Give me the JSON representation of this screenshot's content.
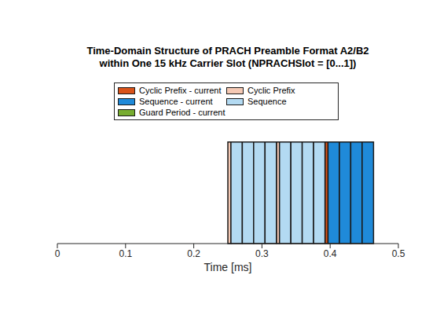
{
  "chart_data": {
    "type": "timeline",
    "title": "Time-Domain Structure of PRACH Preamble Format A2/B2\nwithin One 15 kHz Carrier Slot (NPRACHSlot = [0...1])",
    "x_label": "Time  [ms]",
    "xlim": [
      0,
      0.5
    ],
    "xticks": [
      0,
      0.1,
      0.2,
      0.3,
      0.4,
      0.5
    ],
    "tick_labels": "x",
    "legend": "top",
    "series": [
      {
        "name": "Cyclic Prefix - current",
        "color": "#D95319",
        "segments": [
          [
            0.3924,
            0.3969
          ]
        ]
      },
      {
        "name": "Cyclic Prefix",
        "color": "#F5C9B4",
        "segments": [
          [
            0.25,
            0.2545
          ],
          [
            0.3212,
            0.3257
          ]
        ]
      },
      {
        "name": "Sequence - current",
        "color": "#1F8AD9",
        "segments": [
          [
            0.3969,
            0.4136
          ],
          [
            0.4136,
            0.4302
          ],
          [
            0.4302,
            0.4469
          ],
          [
            0.4469,
            0.4636
          ]
        ]
      },
      {
        "name": "Sequence",
        "color": "#B3DAF2",
        "segments": [
          [
            0.2545,
            0.2712
          ],
          [
            0.2712,
            0.2878
          ],
          [
            0.2878,
            0.3045
          ],
          [
            0.3045,
            0.3212
          ],
          [
            0.3257,
            0.3424
          ],
          [
            0.3424,
            0.359
          ],
          [
            0.359,
            0.3757
          ],
          [
            0.3757,
            0.3924
          ]
        ]
      },
      {
        "name": "Guard Period - current",
        "color": "#77AC30",
        "segments": []
      }
    ]
  }
}
